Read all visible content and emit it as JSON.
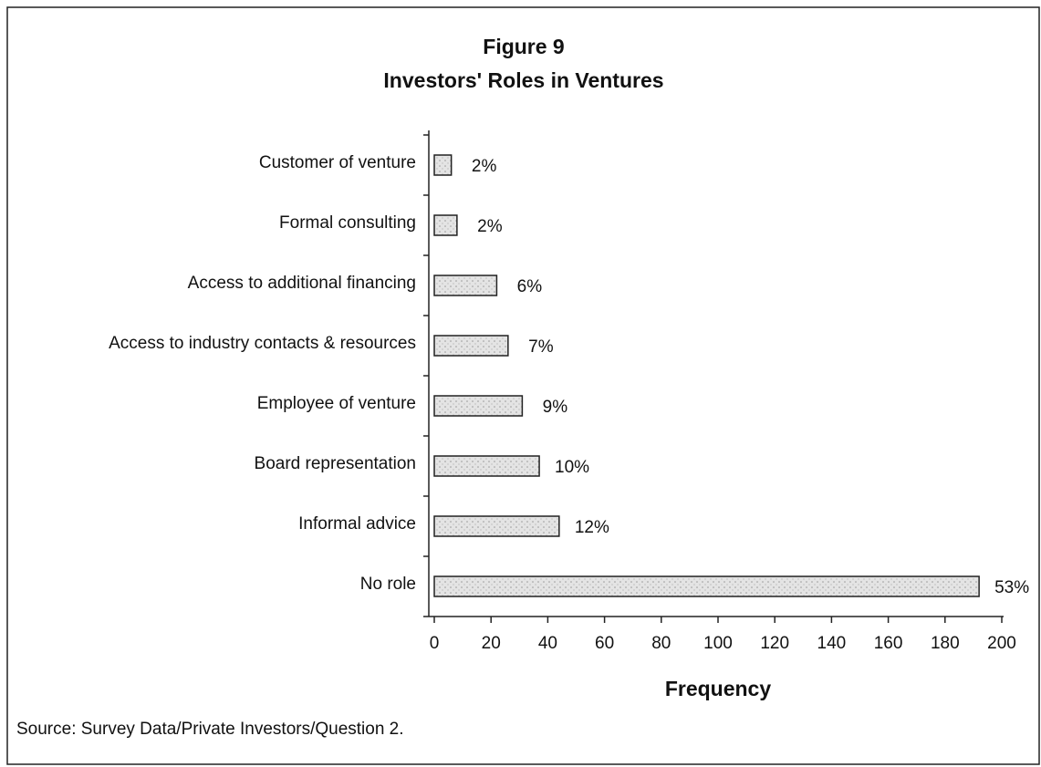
{
  "chart_data": {
    "type": "bar",
    "orientation": "horizontal",
    "title": "Figure 9",
    "subtitle": "Investors' Roles in Ventures",
    "categories": [
      "Customer of venture",
      "Formal consulting",
      "Access to additional financing",
      "Access to industry contacts & resources",
      "Employee of venture",
      "Board representation",
      "Informal advice",
      "No role"
    ],
    "values": [
      6,
      8,
      22,
      26,
      31,
      37,
      44,
      192
    ],
    "percent_labels": [
      "2%",
      "2%",
      "6%",
      "7%",
      "9%",
      "10%",
      "12%",
      "53%"
    ],
    "color": "#dcdcdc",
    "xlim": [
      0,
      200
    ],
    "xticks": [
      0,
      20,
      40,
      60,
      80,
      100,
      120,
      140,
      160,
      180,
      200
    ],
    "xlabel": "Frequency",
    "source": "Source: Survey Data/Private Investors/Question 2."
  }
}
